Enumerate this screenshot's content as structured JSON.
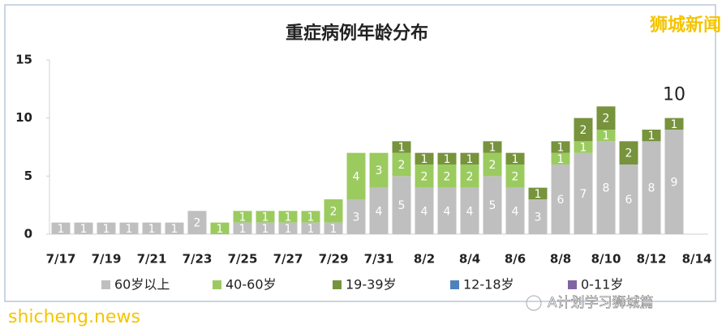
{
  "chart_data": {
    "type": "stacked_bar",
    "title": "重症病例年龄分布",
    "categories": [
      "7/17",
      null,
      "7/19",
      null,
      "7/21",
      null,
      "7/23",
      null,
      "7/25",
      null,
      "7/27",
      null,
      "7/29",
      null,
      "7/31",
      null,
      "8/2",
      null,
      "8/4",
      null,
      "8/6",
      null,
      "8/8",
      null,
      "8/10",
      null,
      "8/12",
      null,
      "8/14"
    ],
    "series": [
      {
        "name": "60岁以上",
        "color": "#bfbfbf",
        "values": [
          1,
          1,
          1,
          1,
          1,
          1,
          2,
          0,
          1,
          1,
          1,
          1,
          1,
          3,
          4,
          5,
          4,
          4,
          4,
          5,
          4,
          3,
          6,
          7,
          8,
          6,
          8,
          9,
          null
        ]
      },
      {
        "name": "40-60岁",
        "color": "#9bcb5f",
        "values": [
          0,
          0,
          0,
          0,
          0,
          0,
          0,
          1,
          1,
          1,
          1,
          1,
          2,
          4,
          3,
          2,
          2,
          2,
          2,
          2,
          2,
          0,
          1,
          1,
          1,
          0,
          0,
          0,
          null
        ]
      },
      {
        "name": "19-39岁",
        "color": "#77933c",
        "values": [
          0,
          0,
          0,
          0,
          0,
          0,
          0,
          0,
          0,
          0,
          0,
          0,
          0,
          0,
          0,
          1,
          1,
          1,
          1,
          1,
          1,
          1,
          1,
          2,
          2,
          2,
          1,
          1,
          null
        ]
      },
      {
        "name": "12-18岁",
        "color": "#4f81bd",
        "values": [
          0,
          0,
          0,
          0,
          0,
          0,
          0,
          0,
          0,
          0,
          0,
          0,
          0,
          0,
          0,
          0,
          0,
          0,
          0,
          0,
          0,
          0,
          0,
          0,
          0,
          0,
          0,
          0,
          null
        ]
      },
      {
        "name": "0-11岁",
        "color": "#8064a2",
        "values": [
          0,
          0,
          0,
          0,
          0,
          0,
          0,
          0,
          0,
          0,
          0,
          0,
          0,
          0,
          0,
          0,
          0,
          0,
          0,
          0,
          0,
          0,
          0,
          0,
          0,
          0,
          0,
          0,
          null
        ]
      }
    ],
    "ylim": [
      0,
      15
    ],
    "yticks": [
      0,
      5,
      10,
      15
    ],
    "grid": false,
    "annotation": "10",
    "watermarks": [
      "狮城新闻",
      "shicheng.news",
      "A计划学习狮城篇"
    ]
  }
}
